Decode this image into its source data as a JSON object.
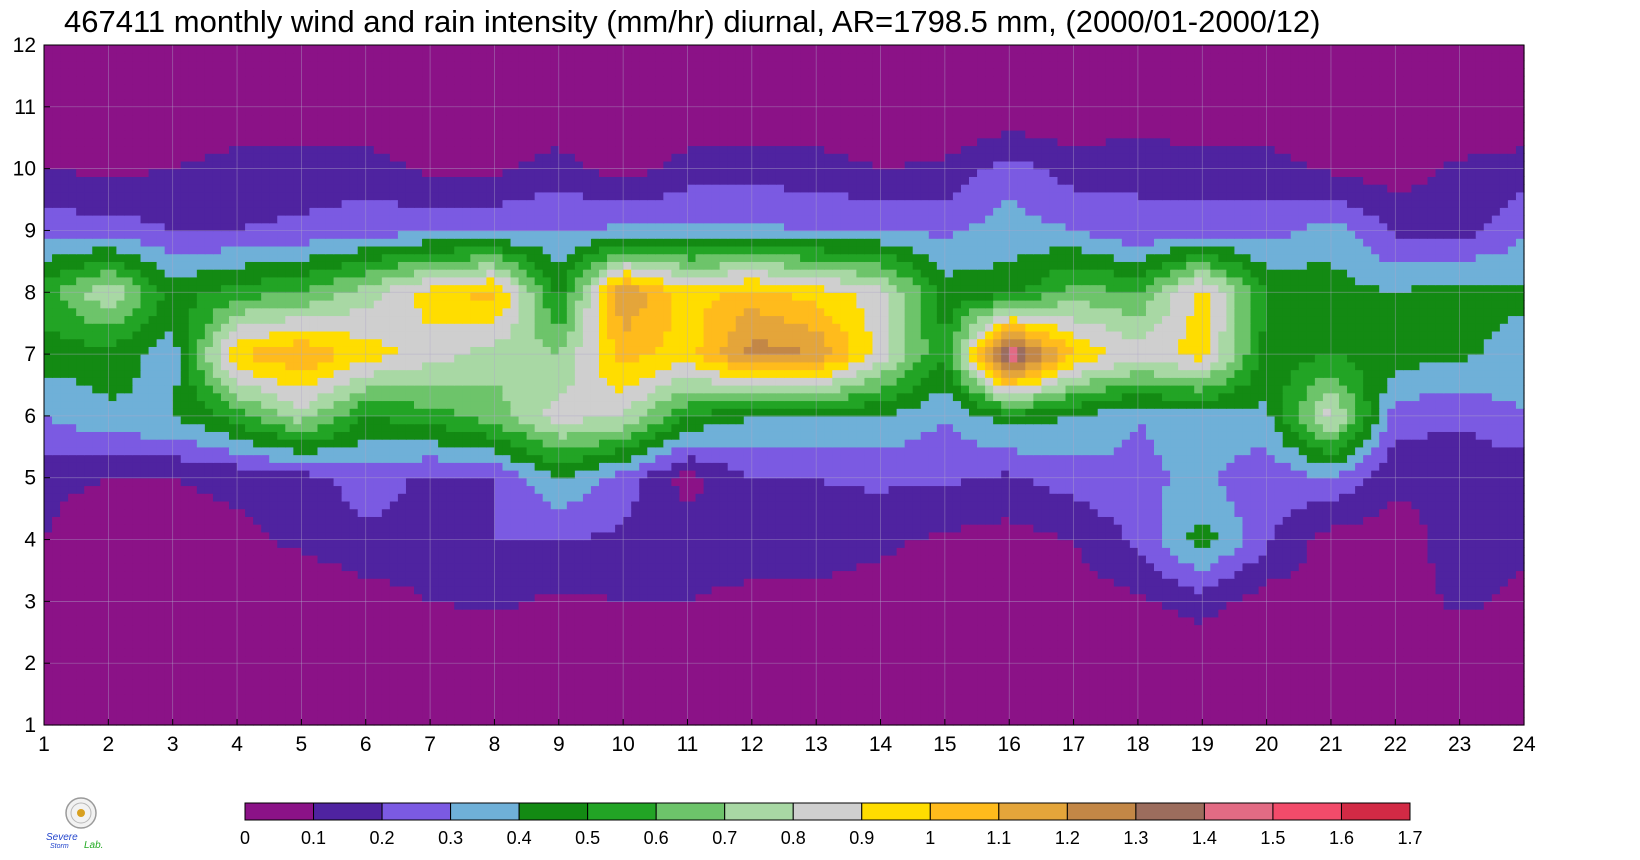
{
  "chart_data": {
    "type": "heatmap",
    "subtype": "filled-contour",
    "title": "467411 monthly wind and rain intensity (mm/hr) diurnal, AR=1798.5 mm, (2000/01-2000/12)",
    "xlabel": "",
    "ylabel": "",
    "x": [
      1,
      2,
      3,
      4,
      5,
      6,
      7,
      8,
      9,
      10,
      11,
      12,
      13,
      14,
      15,
      16,
      17,
      18,
      19,
      20,
      21,
      22,
      23,
      24
    ],
    "y": [
      1,
      2,
      3,
      4,
      5,
      6,
      7,
      8,
      9,
      10,
      11,
      12
    ],
    "xlim": [
      1,
      24
    ],
    "ylim": [
      1,
      12
    ],
    "x_ticks": [
      "1",
      "2",
      "3",
      "4",
      "5",
      "6",
      "7",
      "8",
      "9",
      "10",
      "11",
      "12",
      "13",
      "14",
      "15",
      "16",
      "17",
      "18",
      "19",
      "20",
      "21",
      "22",
      "23",
      "24"
    ],
    "y_ticks": [
      "1",
      "2",
      "3",
      "4",
      "5",
      "6",
      "7",
      "8",
      "9",
      "10",
      "11",
      "12"
    ],
    "grid": true,
    "contour_line_color": "#f0b030",
    "levels": [
      0,
      0.1,
      0.2,
      0.3,
      0.4,
      0.5,
      0.6,
      0.7,
      0.8,
      0.9,
      1,
      1.1,
      1.2,
      1.3,
      1.4,
      1.5,
      1.6,
      1.7
    ],
    "colorbar": {
      "placement": "bottom",
      "labels": [
        "0",
        "0.1",
        "0.2",
        "0.3",
        "0.4",
        "0.5",
        "0.6",
        "0.7",
        "0.8",
        "0.9",
        "1",
        "1.1",
        "1.2",
        "1.3",
        "1.4",
        "1.5",
        "1.6",
        "1.7"
      ],
      "colors": [
        "#8b1287",
        "#4f23a0",
        "#7b5ae2",
        "#6fb0d8",
        "#138a13",
        "#22a425",
        "#6dc46a",
        "#a8d8a4",
        "#cfcfcf",
        "#ffdd00",
        "#ffbb1c",
        "#e4a53a",
        "#c38746",
        "#9c6d5d",
        "#e26b84",
        "#f24b6a",
        "#d22a45"
      ]
    },
    "values": [
      [
        0.0,
        0.0,
        0.0,
        0.0,
        0.0,
        0.0,
        0.0,
        0.0,
        0.0,
        0.0,
        0.0,
        0.0,
        0.0,
        0.0,
        0.0,
        0.0,
        0.0,
        0.0,
        0.0,
        0.0,
        0.0,
        0.0,
        0.0,
        0.0
      ],
      [
        0.0,
        0.0,
        0.0,
        0.0,
        0.0,
        0.0,
        0.0,
        0.0,
        0.0,
        0.0,
        0.0,
        0.0,
        0.0,
        0.0,
        0.0,
        0.0,
        0.0,
        0.0,
        0.0,
        0.0,
        0.0,
        0.0,
        0.0,
        0.0
      ],
      [
        0.0,
        0.0,
        0.0,
        0.0,
        0.0,
        0.05,
        0.1,
        0.12,
        0.08,
        0.1,
        0.1,
        0.05,
        0.05,
        0.05,
        0.05,
        0.05,
        0.05,
        0.08,
        0.15,
        0.05,
        0.05,
        0.05,
        0.12,
        0.08
      ],
      [
        0.1,
        0.04,
        0.06,
        0.08,
        0.12,
        0.18,
        0.15,
        0.2,
        0.2,
        0.18,
        0.18,
        0.2,
        0.18,
        0.12,
        0.08,
        0.06,
        0.1,
        0.22,
        0.45,
        0.22,
        0.05,
        0.05,
        0.15,
        0.12
      ],
      [
        0.12,
        0.1,
        0.1,
        0.12,
        0.15,
        0.25,
        0.18,
        0.2,
        0.4,
        0.25,
        0.05,
        0.2,
        0.2,
        0.22,
        0.22,
        0.18,
        0.25,
        0.28,
        0.32,
        0.22,
        0.3,
        0.12,
        0.12,
        0.12
      ],
      [
        0.3,
        0.38,
        0.4,
        0.55,
        0.75,
        0.5,
        0.55,
        0.65,
        0.85,
        0.8,
        0.5,
        0.4,
        0.4,
        0.4,
        0.3,
        0.45,
        0.4,
        0.3,
        0.35,
        0.38,
        0.85,
        0.25,
        0.22,
        0.3
      ],
      [
        0.45,
        0.45,
        0.35,
        1.0,
        1.1,
        0.95,
        0.85,
        0.75,
        0.7,
        1.05,
        0.95,
        1.25,
        1.2,
        0.85,
        0.5,
        1.5,
        1.0,
        0.85,
        0.95,
        0.45,
        0.5,
        0.45,
        0.42,
        0.35
      ],
      [
        0.55,
        0.8,
        0.45,
        0.55,
        0.6,
        0.75,
        0.95,
        1.05,
        0.45,
        1.2,
        0.95,
        1.05,
        0.95,
        0.85,
        0.45,
        0.45,
        0.65,
        0.6,
        0.95,
        0.5,
        0.45,
        0.4,
        0.45,
        0.42
      ],
      [
        0.25,
        0.25,
        0.2,
        0.2,
        0.22,
        0.25,
        0.28,
        0.28,
        0.3,
        0.32,
        0.32,
        0.32,
        0.3,
        0.3,
        0.28,
        0.35,
        0.3,
        0.2,
        0.25,
        0.25,
        0.35,
        0.18,
        0.15,
        0.28
      ],
      [
        0.1,
        0.08,
        0.1,
        0.15,
        0.15,
        0.15,
        0.08,
        0.08,
        0.15,
        0.05,
        0.15,
        0.15,
        0.15,
        0.1,
        0.12,
        0.25,
        0.15,
        0.2,
        0.15,
        0.15,
        0.08,
        0.05,
        0.12,
        0.15
      ],
      [
        0.0,
        0.0,
        0.0,
        0.0,
        0.0,
        0.0,
        0.0,
        0.0,
        0.0,
        0.0,
        0.0,
        0.0,
        0.0,
        0.0,
        0.0,
        0.0,
        0.0,
        0.0,
        0.0,
        0.0,
        0.0,
        0.0,
        0.0,
        0.0
      ],
      [
        0.0,
        0.0,
        0.0,
        0.0,
        0.0,
        0.0,
        0.0,
        0.0,
        0.0,
        0.0,
        0.0,
        0.0,
        0.0,
        0.0,
        0.0,
        0.0,
        0.0,
        0.0,
        0.0,
        0.0,
        0.0,
        0.0,
        0.0,
        0.0
      ]
    ]
  },
  "logo": {
    "line1": "Severe",
    "line2": "Storm",
    "line3": "Lab."
  }
}
